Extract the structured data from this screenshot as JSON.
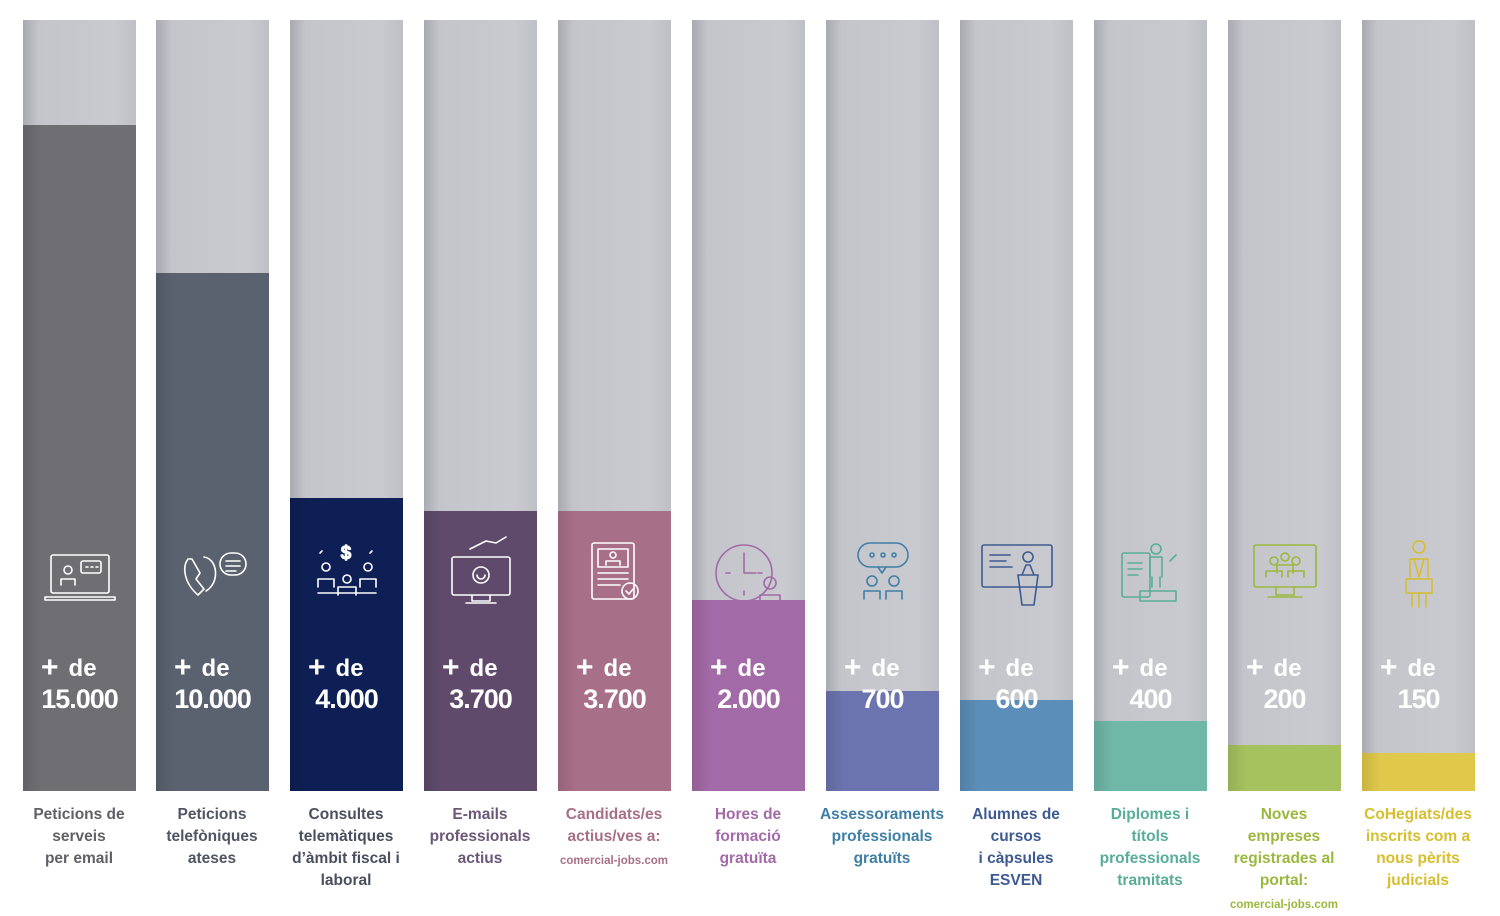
{
  "chart_data": {
    "type": "bar",
    "ylim": [
      0,
      19000
    ],
    "prefix_plus": "+",
    "prefix_word": "de",
    "categories": [
      "Peticions de serveis per email",
      "Peticions telefòniques ateses",
      "Consultes telemàtiques d’àmbit fiscal i laboral",
      "E-mails professionals actius",
      "Candidats/es actius/ves a: comercial-jobs.com",
      "Hores de formació gratuïta",
      "Assessoraments professionals gratuïts",
      "Alumnes de cursos i càpsules ESVEN",
      "Diplomes i títols professionals tramitats",
      "Noves empreses registrades al portal: comercial-jobs.com",
      "CoHegiats/des inscrits com a nous pèrits judicials"
    ],
    "values": [
      15000,
      10000,
      4000,
      3700,
      3700,
      2000,
      700,
      600,
      400,
      200,
      150
    ],
    "bars": [
      {
        "value_text": "15.000",
        "label_lines": [
          "Peticions de",
          "serveis",
          "per email"
        ],
        "color": "#6e6e73",
        "label_color": "#606066",
        "icon": "laptop-chat-icon"
      },
      {
        "value_text": "10.000",
        "label_lines": [
          "Peticions",
          "telefòniques",
          "ateses"
        ],
        "color": "#5a6270",
        "label_color": "#4f5663",
        "icon": "phone-call-icon"
      },
      {
        "value_text": "4.000",
        "label_lines": [
          "Consultes",
          "telemàtiques",
          "d’àmbit fiscal i",
          "laboral"
        ],
        "color": "#0e1f55",
        "label_color": "#4a4f5f",
        "icon": "meeting-money-icon"
      },
      {
        "value_text": "3.700",
        "label_lines": [
          "E-mails",
          "professionals",
          "actius"
        ],
        "color": "#5f4a6b",
        "label_color": "#6b5877",
        "icon": "monitor-email-icon"
      },
      {
        "value_text": "3.700",
        "label_lines": [
          "Candidats/es",
          "actius/ves a:"
        ],
        "label_small": "comercial-jobs.com",
        "color": "#a76f88",
        "label_color": "#a76f88",
        "icon": "resume-document-icon"
      },
      {
        "value_text": "2.000",
        "label_lines": [
          "Hores de",
          "formació",
          "gratuïta"
        ],
        "color": "#a26aa6",
        "label_color": "#a26aa6",
        "icon": "clock-person-icon"
      },
      {
        "value_text": "700",
        "label_lines": [
          "Assessoraments",
          "professionals",
          "gratuïts"
        ],
        "color": "#6c74b0",
        "label_color": "#3f7fa6",
        "icon": "speech-people-icon"
      },
      {
        "value_text": "600",
        "label_lines": [
          "Alumnes de",
          "cursos",
          "i càpsules",
          "ESVEN"
        ],
        "color": "#5b8eb8",
        "label_color": "#3d5a91",
        "icon": "lecture-podium-icon"
      },
      {
        "value_text": "400",
        "label_lines": [
          "Diplomes i",
          "títols",
          "professionals",
          "tramitats"
        ],
        "color": "#6fb7a6",
        "label_color": "#58ad98",
        "icon": "diploma-person-icon"
      },
      {
        "value_text": "200",
        "label_lines": [
          "Noves",
          "empreses",
          "registrades al",
          "portal:"
        ],
        "label_small": "comercial-jobs.com",
        "color": "#a5c25f",
        "label_color": "#9ab83e",
        "icon": "monitor-team-icon"
      },
      {
        "value_text": "150",
        "label_lines": [
          "CoHegiats/des",
          "inscrits com a",
          "nous pèrits",
          "judicials"
        ],
        "color": "#dfc84a",
        "label_color": "#d6be2e",
        "icon": "expert-witness-icon"
      }
    ]
  }
}
